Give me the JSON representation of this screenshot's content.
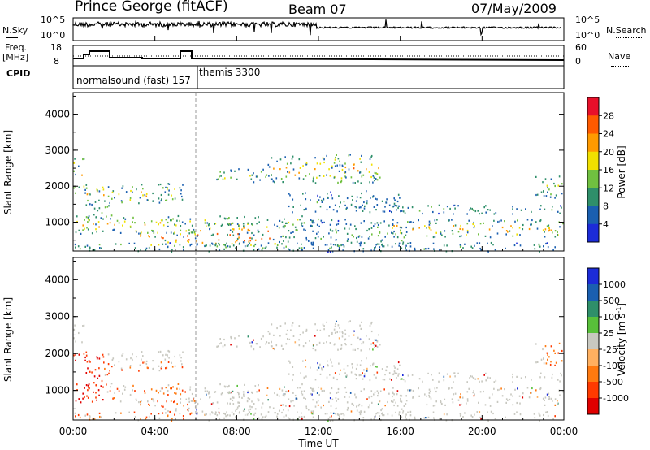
{
  "header": {
    "station": "Prince George (fitACF)",
    "beam": "Beam 07",
    "date": "07/May/2009"
  },
  "top_panels": {
    "nsky_label": "N.Sky",
    "nsearch_label": "N.Search",
    "nsky_ticks": [
      "10^5",
      "10^0"
    ],
    "nsearch_ticks": [
      "10^5",
      "10^0"
    ],
    "freq_label_1": "Freq.",
    "freq_label_2": "[MHz]",
    "freq_ticks": [
      "18",
      "8"
    ],
    "nave_label": "Nave",
    "nave_ticks": [
      "60",
      "0"
    ],
    "cpid_label": "CPID",
    "cpid_segments": [
      "normalsound (fast) 157",
      "themis 3300"
    ]
  },
  "chart_data": [
    {
      "type": "heatmap",
      "name": "power",
      "ylabel": "Slant Range [km]",
      "yticks": [
        "4000",
        "3000",
        "2000",
        "1000"
      ],
      "ytick_values": [
        4000,
        3000,
        2000,
        1000
      ],
      "ylim": [
        200,
        4600
      ],
      "colorbar_label": "Power [dB]",
      "colorbar_ticks": [
        "28",
        "24",
        "20",
        "16",
        "12",
        "8",
        "4"
      ],
      "colorbar_colors": [
        "#e8102a",
        "#ff5a00",
        "#ff9a00",
        "#f0e000",
        "#70c040",
        "#2f8f6a",
        "#1a5fb0",
        "#1c2bd8"
      ]
    },
    {
      "type": "heatmap",
      "name": "velocity",
      "ylabel": "Slant Range [km]",
      "yticks": [
        "4000",
        "3000",
        "2000",
        "1000"
      ],
      "ytick_values": [
        4000,
        3000,
        2000,
        1000
      ],
      "ylim": [
        200,
        4600
      ],
      "colorbar_label": "Velocity [m s",
      "colorbar_label_sup": "-1",
      "colorbar_label_end": "]",
      "colorbar_ticks": [
        "1000",
        "500",
        "100",
        "25",
        "-25",
        "-100",
        "-500",
        "-1000"
      ],
      "colorbar_colors": [
        "#1c2bd8",
        "#1a5fb0",
        "#2f8f6a",
        "#58c03a",
        "#c8c8c0",
        "#ffb060",
        "#ff7a10",
        "#ff3a00",
        "#e00000"
      ]
    }
  ],
  "xaxis": {
    "label": "Time UT",
    "ticks": [
      "00:00",
      "04:00",
      "08:00",
      "12:00",
      "16:00",
      "20:00",
      "00:00"
    ]
  },
  "scatter_regions": [
    {
      "t0": 0.0,
      "t1": 0.6,
      "r0": 1800,
      "r1": 2800,
      "p": 20,
      "pk": [
        0.2,
        0.8
      ]
    },
    {
      "t0": 0.6,
      "t1": 5.5,
      "r0": 1550,
      "r1": 2100,
      "p": 20,
      "pk": [
        0.2,
        0.8
      ]
    },
    {
      "t0": 0.0,
      "t1": 6.0,
      "r0": 700,
      "r1": 1200,
      "p": 18,
      "pk": [
        0.1,
        0.7
      ]
    },
    {
      "t0": 0.5,
      "t1": 2.0,
      "r0": 1100,
      "r1": 1600,
      "p": 14,
      "pk": [
        0.2,
        0.6
      ]
    },
    {
      "t0": 3.0,
      "t1": 6.0,
      "r0": 350,
      "r1": 800,
      "p": 26,
      "pk": [
        0.6,
        1.0
      ]
    },
    {
      "t0": 6.0,
      "t1": 10.0,
      "r0": 350,
      "r1": 1000,
      "p": 27,
      "pk": [
        0.6,
        1.0
      ]
    },
    {
      "t0": 6.0,
      "t1": 12.0,
      "r0": 900,
      "r1": 1200,
      "p": 14,
      "pk": [
        0.3,
        0.7
      ]
    },
    {
      "t0": 7.0,
      "t1": 9.5,
      "r0": 2100,
      "r1": 2500,
      "p": 14,
      "pk": [
        0.2,
        0.6
      ]
    },
    {
      "t0": 9.5,
      "t1": 15.0,
      "r0": 2100,
      "r1": 2900,
      "p": 20,
      "pk": [
        0.3,
        0.8
      ]
    },
    {
      "t0": 10.0,
      "t1": 16.5,
      "r0": 300,
      "r1": 1100,
      "p": 10,
      "pk": [
        0.3,
        0.6
      ]
    },
    {
      "t0": 10.5,
      "t1": 16.0,
      "r0": 1300,
      "r1": 1900,
      "p": 8,
      "pk": [
        0.3,
        0.6
      ]
    },
    {
      "t0": 15.5,
      "t1": 24.0,
      "r0": 1250,
      "r1": 1500,
      "p": 10,
      "pk": [
        0.3,
        0.6
      ]
    },
    {
      "t0": 15.5,
      "t1": 24.0,
      "r0": 600,
      "r1": 1100,
      "p": 20,
      "pk": [
        0.2,
        0.8
      ]
    },
    {
      "t0": 22.5,
      "t1": 24.0,
      "r0": 1700,
      "r1": 2300,
      "p": 14,
      "pk": [
        0.2,
        0.6
      ]
    },
    {
      "t0": 0.0,
      "t1": 24.0,
      "r0": 200,
      "r1": 450,
      "p": 10,
      "pk": [
        0.3,
        0.8
      ]
    }
  ]
}
